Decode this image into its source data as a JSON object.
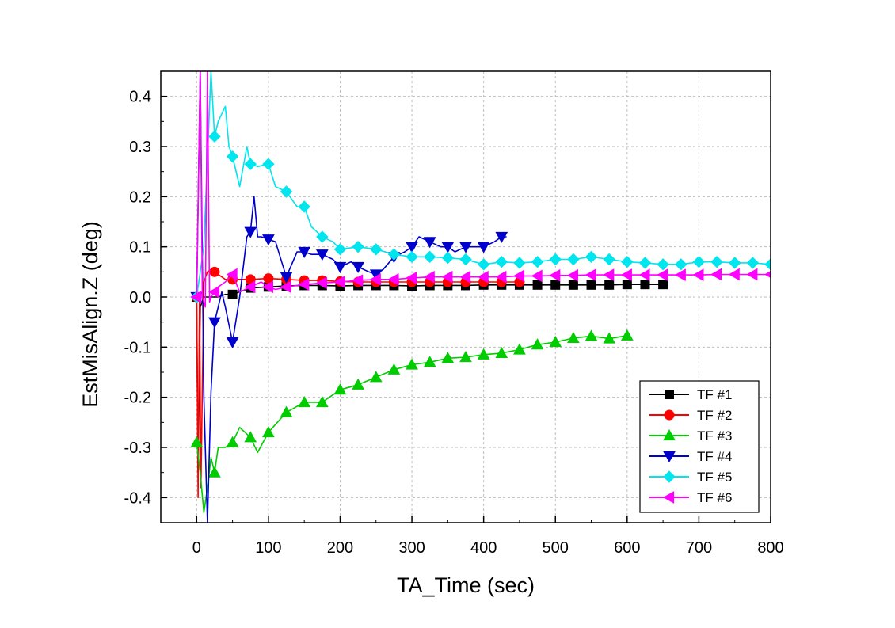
{
  "chart_data": {
    "type": "line",
    "xlabel": "TA_Time (sec)",
    "ylabel": "EstMisAlign.Z (deg)",
    "xlim": [
      -50,
      800
    ],
    "ylim": [
      -0.45,
      0.45
    ],
    "xticks": [
      0,
      100,
      200,
      300,
      400,
      500,
      600,
      700,
      800
    ],
    "xtick_labels": [
      "0",
      "100",
      "200",
      "300",
      "400",
      "500",
      "600",
      "700",
      "800"
    ],
    "yticks": [
      -0.4,
      -0.3,
      -0.2,
      -0.1,
      0.0,
      0.1,
      0.2,
      0.3,
      0.4
    ],
    "ytick_labels": [
      "-0.4",
      "-0.3",
      "-0.2",
      "-0.1",
      "0.0",
      "0.1",
      "0.2",
      "0.3",
      "0.4"
    ],
    "grid": true,
    "legend_position": "bottom-right",
    "series": [
      {
        "name": "TF #1",
        "color": "#000000",
        "marker": "square",
        "x": [
          0,
          2,
          5,
          10,
          20,
          30,
          40,
          50,
          75,
          100,
          125,
          150,
          175,
          200,
          225,
          250,
          275,
          300,
          325,
          350,
          375,
          400,
          425,
          450,
          475,
          500,
          525,
          550,
          575,
          600,
          625,
          650
        ],
        "y": [
          0.0,
          -0.35,
          -0.02,
          0.0,
          0.0,
          0.0,
          0.005,
          0.005,
          0.018,
          0.02,
          0.022,
          0.023,
          0.023,
          0.022,
          0.023,
          0.023,
          0.023,
          0.022,
          0.023,
          0.023,
          0.023,
          0.024,
          0.024,
          0.024,
          0.024,
          0.024,
          0.024,
          0.024,
          0.024,
          0.025,
          0.025,
          0.025
        ]
      },
      {
        "name": "TF #2",
        "color": "#ff0000",
        "marker": "circle",
        "x": [
          0,
          2,
          4,
          6,
          10,
          15,
          20,
          25,
          30,
          40,
          50,
          75,
          100,
          125,
          150,
          175,
          200,
          225,
          250,
          275,
          300,
          325,
          350,
          375,
          400,
          425,
          450
        ],
        "y": [
          0.0,
          -0.4,
          0.0,
          -0.38,
          0.03,
          0.05,
          0.055,
          0.05,
          0.045,
          0.035,
          0.035,
          0.035,
          0.037,
          0.035,
          0.033,
          0.033,
          0.031,
          0.03,
          0.03,
          0.03,
          0.03,
          0.03,
          0.03,
          0.03,
          0.03,
          0.03,
          0.03
        ]
      },
      {
        "name": "TF #3",
        "color": "#00cc00",
        "marker": "triangle-up",
        "x": [
          0,
          5,
          10,
          15,
          20,
          25,
          30,
          40,
          50,
          60,
          75,
          85,
          100,
          125,
          150,
          175,
          200,
          225,
          250,
          275,
          300,
          325,
          350,
          375,
          400,
          425,
          450,
          475,
          500,
          525,
          550,
          575,
          600
        ],
        "y": [
          -0.29,
          -0.35,
          -0.43,
          -0.38,
          -0.32,
          -0.35,
          -0.3,
          -0.3,
          -0.29,
          -0.26,
          -0.28,
          -0.31,
          -0.27,
          -0.23,
          -0.21,
          -0.21,
          -0.185,
          -0.175,
          -0.16,
          -0.145,
          -0.135,
          -0.13,
          -0.122,
          -0.12,
          -0.115,
          -0.112,
          -0.105,
          -0.095,
          -0.09,
          -0.082,
          -0.078,
          -0.083,
          -0.077
        ]
      },
      {
        "name": "TF #4",
        "color": "#0000cc",
        "marker": "triangle-down",
        "x": [
          0,
          5,
          10,
          15,
          20,
          25,
          30,
          35,
          40,
          50,
          60,
          70,
          75,
          80,
          85,
          90,
          100,
          110,
          125,
          140,
          150,
          160,
          175,
          190,
          200,
          215,
          225,
          240,
          250,
          260,
          275,
          290,
          300,
          310,
          325,
          340,
          350,
          360,
          375,
          390,
          400,
          415,
          425,
          432
        ],
        "y": [
          0.0,
          0.45,
          -0.2,
          -0.45,
          -0.19,
          -0.05,
          -0.02,
          0.01,
          -0.02,
          -0.09,
          0.0,
          0.12,
          0.13,
          0.2,
          0.12,
          0.12,
          0.115,
          0.11,
          0.04,
          0.09,
          0.09,
          0.085,
          0.085,
          0.075,
          0.06,
          0.07,
          0.06,
          0.05,
          0.045,
          0.055,
          0.08,
          0.09,
          0.1,
          0.12,
          0.11,
          0.1,
          0.1,
          0.09,
          0.1,
          0.1,
          0.1,
          0.11,
          0.12,
          0.12
        ]
      },
      {
        "name": "TF #5",
        "color": "#00e5ee",
        "marker": "diamond",
        "x": [
          0,
          10,
          20,
          25,
          30,
          40,
          45,
          50,
          60,
          70,
          75,
          85,
          100,
          110,
          125,
          140,
          150,
          160,
          175,
          190,
          200,
          225,
          250,
          275,
          300,
          325,
          350,
          375,
          400,
          425,
          450,
          475,
          500,
          525,
          550,
          575,
          600,
          625,
          650,
          675,
          700,
          725,
          750,
          775,
          800
        ],
        "y": [
          0.0,
          0.1,
          0.45,
          0.32,
          0.35,
          0.38,
          0.3,
          0.28,
          0.22,
          0.3,
          0.265,
          0.26,
          0.265,
          0.22,
          0.21,
          0.18,
          0.18,
          0.14,
          0.12,
          0.11,
          0.095,
          0.1,
          0.095,
          0.085,
          0.08,
          0.08,
          0.078,
          0.075,
          0.065,
          0.07,
          0.068,
          0.07,
          0.075,
          0.075,
          0.08,
          0.075,
          0.07,
          0.068,
          0.065,
          0.065,
          0.07,
          0.07,
          0.068,
          0.068,
          0.065
        ]
      },
      {
        "name": "TF #6",
        "color": "#ff00ff",
        "marker": "triangle-left",
        "x": [
          0,
          5,
          8,
          12,
          15,
          18,
          20,
          25,
          30,
          40,
          50,
          60,
          75,
          90,
          100,
          110,
          125,
          150,
          175,
          200,
          225,
          250,
          275,
          300,
          325,
          350,
          375,
          400,
          425,
          450,
          475,
          500,
          525,
          550,
          575,
          600,
          625,
          650,
          675,
          700,
          725,
          750,
          775,
          800
        ],
        "y": [
          0.0,
          0.45,
          0.0,
          -0.02,
          0.45,
          -0.01,
          0.0,
          0.01,
          0.02,
          0.03,
          0.045,
          0.01,
          0.02,
          0.03,
          0.02,
          0.015,
          0.02,
          0.025,
          0.028,
          0.03,
          0.033,
          0.035,
          0.035,
          0.038,
          0.04,
          0.04,
          0.04,
          0.04,
          0.04,
          0.042,
          0.042,
          0.043,
          0.043,
          0.044,
          0.044,
          0.044,
          0.044,
          0.044,
          0.044,
          0.044,
          0.045,
          0.045,
          0.045,
          0.045
        ]
      }
    ]
  }
}
